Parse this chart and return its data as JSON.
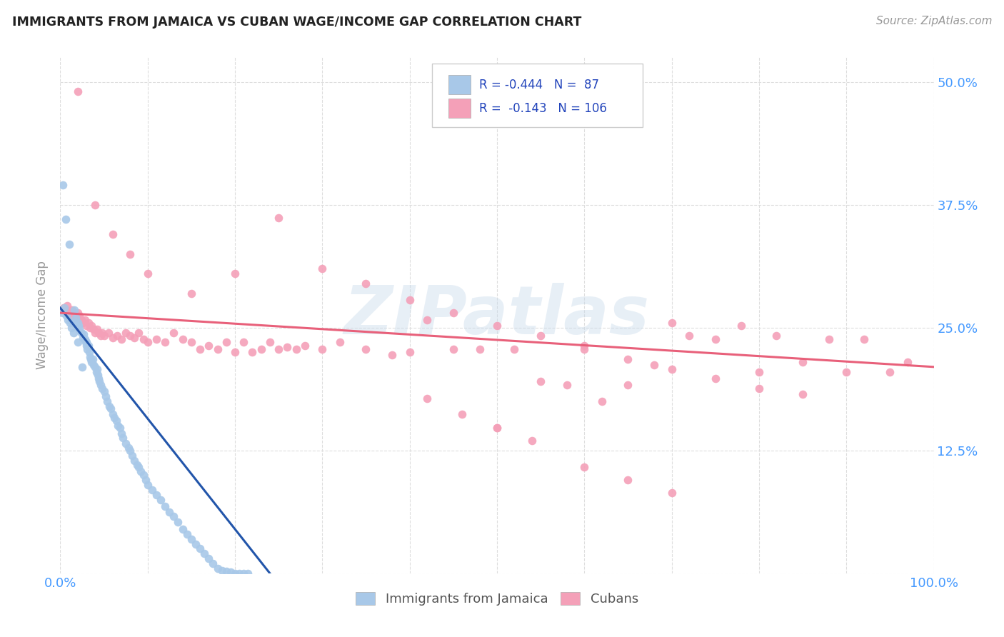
{
  "title": "IMMIGRANTS FROM JAMAICA VS CUBAN WAGE/INCOME GAP CORRELATION CHART",
  "source": "Source: ZipAtlas.com",
  "ylabel": "Wage/Income Gap",
  "watermark": "ZIPatlas",
  "color_jamaica": "#a8c8e8",
  "color_cuba": "#f4a0b8",
  "color_jamaica_line": "#2255aa",
  "color_cuba_line": "#e8607a",
  "xlim": [
    0.0,
    1.0
  ],
  "ylim": [
    0.0,
    0.525
  ],
  "xticks": [
    0.0,
    0.1,
    0.2,
    0.3,
    0.4,
    0.5,
    0.6,
    0.7,
    0.8,
    0.9,
    1.0
  ],
  "ytick_positions": [
    0.0,
    0.125,
    0.25,
    0.375,
    0.5
  ],
  "ytick_labels": [
    "",
    "12.5%",
    "25.0%",
    "37.5%",
    "50.0%"
  ],
  "jamaica_x": [
    0.003,
    0.005,
    0.007,
    0.009,
    0.011,
    0.013,
    0.015,
    0.016,
    0.018,
    0.02,
    0.021,
    0.022,
    0.024,
    0.026,
    0.027,
    0.028,
    0.029,
    0.03,
    0.031,
    0.032,
    0.033,
    0.034,
    0.035,
    0.036,
    0.037,
    0.038,
    0.04,
    0.041,
    0.042,
    0.043,
    0.044,
    0.045,
    0.046,
    0.048,
    0.05,
    0.052,
    0.054,
    0.056,
    0.058,
    0.06,
    0.062,
    0.064,
    0.066,
    0.068,
    0.07,
    0.072,
    0.075,
    0.078,
    0.08,
    0.082,
    0.085,
    0.088,
    0.09,
    0.092,
    0.095,
    0.098,
    0.1,
    0.105,
    0.11,
    0.115,
    0.12,
    0.125,
    0.13,
    0.135,
    0.14,
    0.145,
    0.15,
    0.155,
    0.16,
    0.165,
    0.17,
    0.175,
    0.18,
    0.185,
    0.19,
    0.195,
    0.2,
    0.205,
    0.21,
    0.215,
    0.003,
    0.006,
    0.01,
    0.015,
    0.02,
    0.025,
    0.03
  ],
  "jamaica_y": [
    0.265,
    0.27,
    0.262,
    0.258,
    0.255,
    0.25,
    0.245,
    0.268,
    0.26,
    0.255,
    0.252,
    0.248,
    0.245,
    0.24,
    0.243,
    0.238,
    0.235,
    0.232,
    0.228,
    0.232,
    0.225,
    0.22,
    0.218,
    0.215,
    0.218,
    0.212,
    0.21,
    0.205,
    0.208,
    0.202,
    0.198,
    0.195,
    0.192,
    0.188,
    0.185,
    0.18,
    0.175,
    0.17,
    0.168,
    0.162,
    0.158,
    0.155,
    0.15,
    0.148,
    0.142,
    0.138,
    0.132,
    0.128,
    0.125,
    0.12,
    0.115,
    0.11,
    0.108,
    0.104,
    0.1,
    0.095,
    0.09,
    0.085,
    0.08,
    0.075,
    0.068,
    0.062,
    0.058,
    0.052,
    0.045,
    0.04,
    0.035,
    0.03,
    0.025,
    0.02,
    0.015,
    0.01,
    0.005,
    0.003,
    0.002,
    0.001,
    0.0,
    0.0,
    0.0,
    0.0,
    0.395,
    0.36,
    0.335,
    0.255,
    0.235,
    0.21,
    0.235
  ],
  "cuba_x": [
    0.004,
    0.006,
    0.008,
    0.01,
    0.012,
    0.014,
    0.016,
    0.018,
    0.02,
    0.022,
    0.024,
    0.026,
    0.028,
    0.03,
    0.032,
    0.034,
    0.036,
    0.038,
    0.04,
    0.042,
    0.044,
    0.046,
    0.048,
    0.05,
    0.055,
    0.06,
    0.065,
    0.07,
    0.075,
    0.08,
    0.085,
    0.09,
    0.095,
    0.1,
    0.11,
    0.12,
    0.13,
    0.14,
    0.15,
    0.16,
    0.17,
    0.18,
    0.19,
    0.2,
    0.21,
    0.22,
    0.23,
    0.24,
    0.25,
    0.26,
    0.27,
    0.28,
    0.3,
    0.32,
    0.35,
    0.38,
    0.4,
    0.42,
    0.45,
    0.48,
    0.5,
    0.52,
    0.55,
    0.58,
    0.6,
    0.62,
    0.65,
    0.68,
    0.7,
    0.72,
    0.75,
    0.78,
    0.8,
    0.82,
    0.85,
    0.88,
    0.9,
    0.92,
    0.95,
    0.97,
    0.02,
    0.04,
    0.06,
    0.08,
    0.1,
    0.15,
    0.2,
    0.25,
    0.3,
    0.35,
    0.4,
    0.45,
    0.5,
    0.55,
    0.6,
    0.65,
    0.7,
    0.75,
    0.8,
    0.85,
    0.6,
    0.65,
    0.7,
    0.42,
    0.46,
    0.5,
    0.54
  ],
  "cuba_y": [
    0.27,
    0.268,
    0.272,
    0.265,
    0.262,
    0.268,
    0.265,
    0.26,
    0.265,
    0.262,
    0.258,
    0.255,
    0.258,
    0.252,
    0.255,
    0.25,
    0.252,
    0.248,
    0.245,
    0.248,
    0.245,
    0.242,
    0.245,
    0.242,
    0.245,
    0.24,
    0.242,
    0.238,
    0.245,
    0.242,
    0.24,
    0.245,
    0.238,
    0.235,
    0.238,
    0.235,
    0.245,
    0.238,
    0.235,
    0.228,
    0.232,
    0.228,
    0.235,
    0.225,
    0.235,
    0.225,
    0.228,
    0.235,
    0.228,
    0.23,
    0.228,
    0.232,
    0.228,
    0.235,
    0.228,
    0.222,
    0.225,
    0.258,
    0.228,
    0.228,
    0.148,
    0.228,
    0.195,
    0.192,
    0.232,
    0.175,
    0.192,
    0.212,
    0.255,
    0.242,
    0.238,
    0.252,
    0.205,
    0.242,
    0.215,
    0.238,
    0.205,
    0.238,
    0.205,
    0.215,
    0.49,
    0.375,
    0.345,
    0.325,
    0.305,
    0.285,
    0.305,
    0.362,
    0.31,
    0.295,
    0.278,
    0.265,
    0.252,
    0.242,
    0.228,
    0.218,
    0.208,
    0.198,
    0.188,
    0.182,
    0.108,
    0.095,
    0.082,
    0.178,
    0.162,
    0.148,
    0.135
  ]
}
